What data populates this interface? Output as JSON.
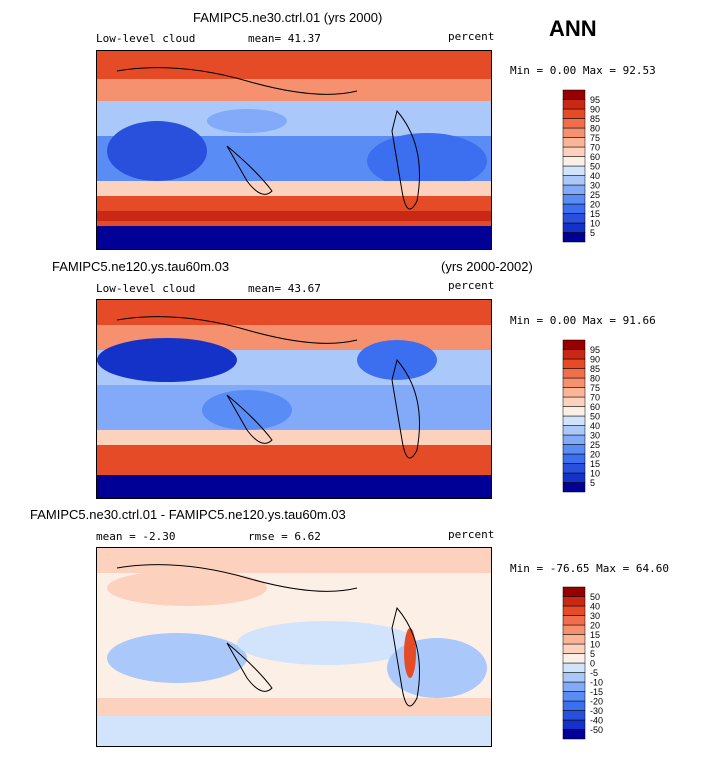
{
  "season": "ANN",
  "colors": {
    "abs_scale": [
      "#000096",
      "#1432c8",
      "#2850dc",
      "#3c6ef0",
      "#5a8cf5",
      "#82aaf8",
      "#aac8fa",
      "#d2e4fc",
      "#fcf0e6",
      "#fcd2be",
      "#fab496",
      "#f5916e",
      "#f06e4b",
      "#e64b28",
      "#c82814",
      "#960000"
    ],
    "diff_scale": [
      "#000096",
      "#1432c8",
      "#2850dc",
      "#3c6ef0",
      "#5a8cf5",
      "#82aaf8",
      "#aac8fa",
      "#d2e4fc",
      "#fcf0e6",
      "#fcd2be",
      "#fab496",
      "#f5916e",
      "#f06e4b",
      "#e64b28",
      "#c82814",
      "#960000"
    ]
  },
  "panels": [
    {
      "header_left": "FAMIPC5.ne30.ctrl.01 (yrs 2000)",
      "header_right": "",
      "sub_left": "Low-level cloud",
      "sub_mid": "mean=  41.37",
      "sub_right": "percent",
      "minmax": "Min =   0.00 Max =  92.53",
      "colorbar_labels": [
        "5",
        "10",
        "15",
        "20",
        "25",
        "30",
        "40",
        "50",
        "60",
        "70",
        "75",
        "80",
        "85",
        "90",
        "95"
      ]
    },
    {
      "header_left": "FAMIPC5.ne120.ys.tau60m.03",
      "header_right": "(yrs 2000-2002)",
      "sub_left": "Low-level cloud",
      "sub_mid": "mean=  43.67",
      "sub_right": "percent",
      "minmax": "Min =   0.00 Max =  91.66",
      "colorbar_labels": [
        "5",
        "10",
        "15",
        "20",
        "25",
        "30",
        "40",
        "50",
        "60",
        "70",
        "75",
        "80",
        "85",
        "90",
        "95"
      ]
    },
    {
      "header_left": "FAMIPC5.ne30.ctrl.01 - FAMIPC5.ne120.ys.tau60m.03",
      "header_right": "",
      "sub_left": "mean =  -2.30",
      "sub_mid": "rmse =   6.62",
      "sub_right": "percent",
      "minmax": "Min = -76.65 Max =  64.60",
      "colorbar_labels": [
        "-50",
        "-40",
        "-30",
        "-20",
        "-15",
        "-10",
        "-5",
        "0",
        "5",
        "10",
        "15",
        "20",
        "30",
        "40",
        "50"
      ]
    }
  ],
  "chart_data": [
    {
      "type": "heatmap",
      "title": "FAMIPC5.ne30.ctrl.01 (yrs 2000)",
      "field": "Low-level cloud",
      "units": "percent",
      "mean": 41.37,
      "min": 0.0,
      "max": 92.53,
      "contour_levels": [
        5,
        10,
        15,
        20,
        25,
        30,
        40,
        50,
        60,
        70,
        75,
        80,
        85,
        90,
        95
      ]
    },
    {
      "type": "heatmap",
      "title": "FAMIPC5.ne120.ys.tau60m.03 (yrs 2000-2002)",
      "field": "Low-level cloud",
      "units": "percent",
      "mean": 43.67,
      "min": 0.0,
      "max": 91.66,
      "contour_levels": [
        5,
        10,
        15,
        20,
        25,
        30,
        40,
        50,
        60,
        70,
        75,
        80,
        85,
        90,
        95
      ]
    },
    {
      "type": "heatmap",
      "title": "FAMIPC5.ne30.ctrl.01 - FAMIPC5.ne120.ys.tau60m.03",
      "units": "percent",
      "mean": -2.3,
      "rmse": 6.62,
      "min": -76.65,
      "max": 64.6,
      "contour_levels": [
        -50,
        -40,
        -30,
        -20,
        -15,
        -10,
        -5,
        0,
        5,
        10,
        15,
        20,
        30,
        40,
        50
      ]
    }
  ]
}
